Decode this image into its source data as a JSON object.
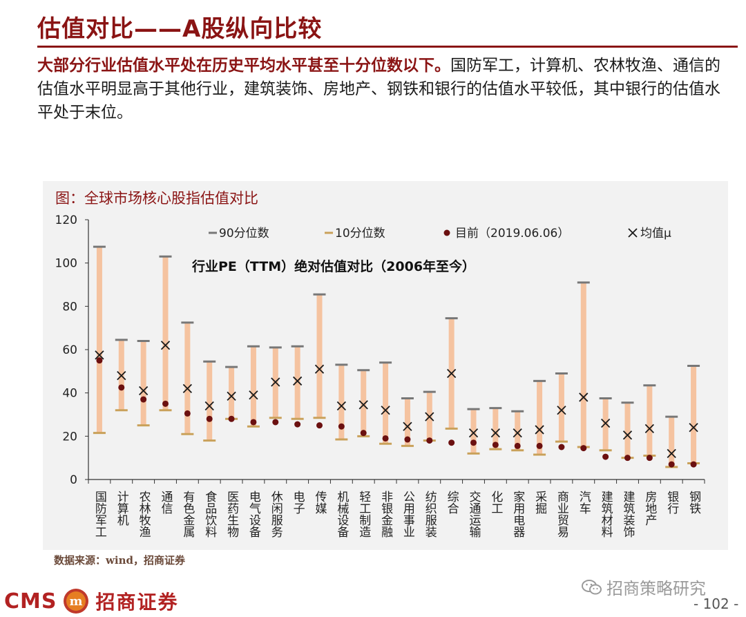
{
  "page": {
    "title": "估值对比——A股纵向比较",
    "intro_lead": "大部分行业估值水平处在历史平均水平甚至十分位数以下。",
    "intro_rest": "国防军工，计算机、农林牧渔、通信的估值水平明显高于其他行业，建筑装饰、房地产、钢铁和银行的估值水平较低，其中银行的估值水平处于末位。",
    "chart_caption": "图：全球市场核心股指估值对比",
    "source": "数据来源：wind，招商证券",
    "watermark": "招商策略研究",
    "page_number": "- 102 -",
    "logo_text": "CMS",
    "logo_cn": "招商证券",
    "logo_badge": "m"
  },
  "colors": {
    "brand": "#8a1414",
    "range_bar": "#f5c3a0",
    "p90_tick": "#777777",
    "p10_tick": "#c9a15a",
    "current_dot": "#6b1010",
    "mean_mark": "#1a1a1a"
  },
  "chart_data": {
    "type": "range",
    "title": "行业PE（TTM）绝对估值对比（2006年至今）",
    "ylim": [
      0,
      120
    ],
    "yticks": [
      0,
      20,
      40,
      60,
      80,
      100,
      120
    ],
    "grid": false,
    "legend_position": "top",
    "categories": [
      "国防军工",
      "计算机",
      "农林牧渔",
      "通信",
      "有色金属",
      "食品饮料",
      "医药生物",
      "电气设备",
      "休闲服务",
      "电子",
      "传媒",
      "机械设备",
      "轻工制造",
      "非银金融",
      "公用事业",
      "纺织服装",
      "综合",
      "交通运输",
      "化工",
      "家用电器",
      "采掘",
      "商业贸易",
      "汽车",
      "建筑材料",
      "建筑装饰",
      "房地产",
      "银行",
      "钢铁"
    ],
    "series": [
      {
        "name": "90分位数",
        "values": [
          107.5,
          64.5,
          64,
          103,
          72.5,
          54.5,
          52,
          61.5,
          61,
          61.5,
          85.5,
          53,
          50.5,
          54,
          37.5,
          40.5,
          74.5,
          32.5,
          33,
          31.5,
          45.5,
          49,
          91,
          37.5,
          35.5,
          43.5,
          29,
          52.5
        ]
      },
      {
        "name": "10分位数",
        "values": [
          21.5,
          32,
          25,
          32,
          21,
          18,
          28,
          24.5,
          28.5,
          28,
          28.5,
          18.5,
          20,
          16.5,
          15.5,
          18,
          23.5,
          12,
          14,
          13.5,
          11.5,
          17.5,
          15,
          13.5,
          10,
          11,
          5.8,
          7.5
        ]
      },
      {
        "name": "目前（2019.06.06）",
        "values": [
          55,
          42.5,
          37,
          35,
          30.5,
          28,
          28,
          26.5,
          26.5,
          25.5,
          25,
          24.5,
          21.5,
          19,
          18.5,
          18,
          17,
          17,
          16,
          15.5,
          15.5,
          15,
          14.5,
          10.5,
          10,
          10,
          7,
          7
        ]
      },
      {
        "name": "均值μ",
        "values": [
          57.5,
          48,
          41,
          62,
          42,
          34,
          38.5,
          39,
          45,
          45.5,
          51,
          34,
          34.5,
          32,
          24.5,
          29,
          49,
          21.5,
          21.5,
          21.5,
          23,
          32,
          38,
          26,
          20.5,
          23.5,
          12,
          24
        ]
      }
    ]
  }
}
